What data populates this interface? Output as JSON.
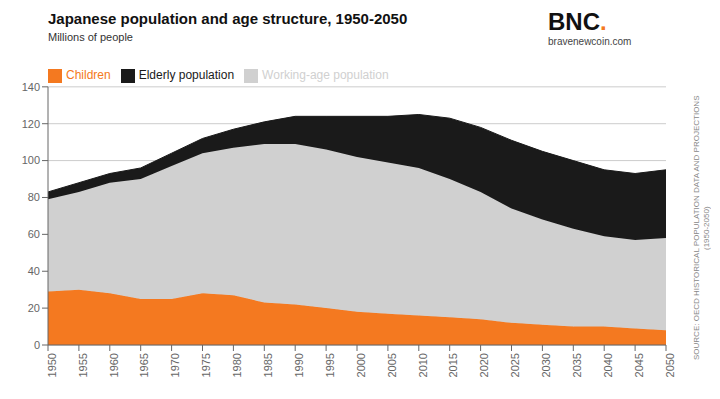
{
  "chart_data": {
    "type": "area",
    "title": "Japanese population and age structure, 1950-2050",
    "subtitle": "Millions of people",
    "x": [
      1950,
      1955,
      1960,
      1965,
      1970,
      1975,
      1980,
      1985,
      1990,
      1995,
      2000,
      2005,
      2010,
      2015,
      2020,
      2025,
      2030,
      2035,
      2040,
      2045,
      2050
    ],
    "series": [
      {
        "name": "Children",
        "color": "#F47920",
        "values": [
          29,
          30,
          28,
          25,
          25,
          28,
          27,
          23,
          22,
          20,
          18,
          17,
          16,
          15,
          14,
          12,
          11,
          10,
          10,
          9,
          8
        ]
      },
      {
        "name": "Working-age population",
        "color": "#D0D0D0",
        "values": [
          50,
          53,
          60,
          65,
          72,
          76,
          80,
          86,
          87,
          86,
          84,
          82,
          80,
          75,
          69,
          62,
          57,
          53,
          49,
          48,
          50
        ]
      },
      {
        "name": "Elderly population",
        "color": "#1A1A1A",
        "values": [
          4,
          5,
          5,
          6,
          7,
          8,
          10,
          12,
          15,
          18,
          22,
          25,
          29,
          33,
          35,
          37,
          37,
          37,
          36,
          36,
          37
        ]
      }
    ],
    "stacked": true,
    "xlim": [
      1950,
      2050
    ],
    "xticks": [
      1950,
      1955,
      1960,
      1965,
      1970,
      1975,
      1980,
      1985,
      1990,
      1995,
      2000,
      2005,
      2010,
      2015,
      2020,
      2025,
      2030,
      2035,
      2040,
      2045,
      2050
    ],
    "ylim": [
      0,
      140
    ],
    "yticks": [
      0,
      20,
      40,
      60,
      80,
      100,
      120,
      140
    ],
    "grid": true,
    "legend": "top",
    "annotations": [
      "BNC",
      ".",
      "bravenewcoin.com",
      "SOURCE: OECD HISTORICAL POPULATION DATA AND PROJECTIONS",
      "(1950-2050)"
    ]
  }
}
